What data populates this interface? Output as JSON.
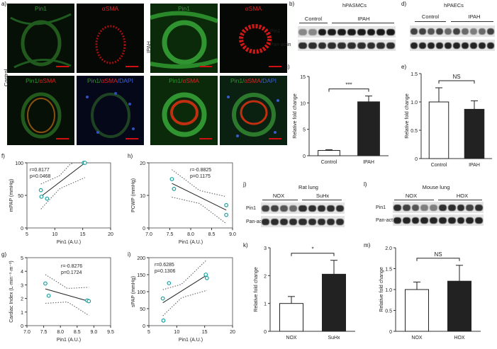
{
  "panel_letters": {
    "a": "a)",
    "b": "b)",
    "c": "c)",
    "d": "d)",
    "e": "e)",
    "f": "f)",
    "g": "g)",
    "h": "h)",
    "i": "i)",
    "j": "j)",
    "k": "k)",
    "l": "l)",
    "m": "m)"
  },
  "panel_a": {
    "row_label_control": "Control",
    "row_label_ipah": "IPAH",
    "label_pin1": "Pin1",
    "label_asma": "αSMA",
    "label_pin1_part": "Pin1/",
    "label_asma_part": "αSMA",
    "label_slash": "/",
    "label_dapi": "DAPI"
  },
  "panel_b": {
    "title": "hPASMCs",
    "group1": "Control",
    "group2": "IPAH",
    "row1": "Pin1",
    "row2": "Pan-actin"
  },
  "panel_d": {
    "title": "hPAECs",
    "group1": "Control",
    "group2": "IPAH"
  },
  "panel_j": {
    "title": "Rat lung",
    "group1": "NOX",
    "group2": "SuHx",
    "row1": "Pin1",
    "row2": "Pan-actin"
  },
  "panel_l": {
    "title": "Mouse lung",
    "group1": "NOX",
    "group2": "HOX",
    "row1": "Pin1",
    "row2": "Pan-actin"
  },
  "chart_data": [
    {
      "id": "c",
      "type": "bar",
      "categories": [
        "Control",
        "IPAH"
      ],
      "values": [
        1.0,
        10.2
      ],
      "errors": [
        0.15,
        1.1
      ],
      "ylabel": "Relative fold change",
      "ylim": [
        0,
        15
      ],
      "yticks": [
        0,
        5,
        10,
        15
      ],
      "annotation": "***",
      "colors": [
        "#ffffff",
        "#222222"
      ]
    },
    {
      "id": "e",
      "type": "bar",
      "categories": [
        "Control",
        "IPAH"
      ],
      "values": [
        1.0,
        0.87
      ],
      "errors": [
        0.25,
        0.15
      ],
      "ylabel": "Relative fold change",
      "ylim": [
        0,
        1.5
      ],
      "yticks": [
        "0",
        "0.5",
        "1.0",
        "1.5"
      ],
      "annotation": "NS",
      "colors": [
        "#ffffff",
        "#222222"
      ]
    },
    {
      "id": "k",
      "type": "bar",
      "categories": [
        "NOX",
        "SuHx"
      ],
      "values": [
        1.0,
        2.05
      ],
      "errors": [
        0.25,
        0.5
      ],
      "ylabel": "Relative fold change",
      "ylim": [
        0,
        3
      ],
      "yticks": [
        "0",
        "1",
        "2",
        "3"
      ],
      "annotation": "*",
      "colors": [
        "#ffffff",
        "#222222"
      ]
    },
    {
      "id": "m",
      "type": "bar",
      "categories": [
        "NOX",
        "HOX"
      ],
      "values": [
        1.0,
        1.2
      ],
      "errors": [
        0.18,
        0.38
      ],
      "ylabel": "Relative fold change",
      "ylim": [
        0,
        2.0
      ],
      "yticks": [
        "0",
        "0.5",
        "1.0",
        "1.5",
        "2.0"
      ],
      "annotation": "NS",
      "colors": [
        "#ffffff",
        "#222222"
      ]
    },
    {
      "id": "f",
      "type": "scatter",
      "xlabel": "Pin1 (A.U.)",
      "ylabel": "mPAP (mmHg)",
      "xlim": [
        5,
        20
      ],
      "ylim": [
        0,
        100
      ],
      "xticks": [
        "5",
        "10",
        "15",
        "20"
      ],
      "yticks": [
        "0",
        "50",
        "100"
      ],
      "x": [
        7.6,
        8.6,
        7.5,
        15.2,
        15.4
      ],
      "y": [
        48,
        45,
        58,
        100,
        100
      ],
      "stats": [
        "r=0.8177",
        "p=0.0468"
      ]
    },
    {
      "id": "h",
      "type": "scatter",
      "xlabel": "Pin1 (A.U.)",
      "ylabel": "PCWP (mmHg)",
      "xlim": [
        7.0,
        9.0
      ],
      "ylim": [
        0,
        20
      ],
      "xticks": [
        "7.0",
        "7.5",
        "8.0",
        "8.5",
        "9.0"
      ],
      "yticks": [
        "0",
        "10",
        "20"
      ],
      "x": [
        7.55,
        7.6,
        8.85,
        8.85
      ],
      "y": [
        15,
        12,
        7,
        4
      ],
      "stats": [
        "r=-0.8825",
        "p=0.1175"
      ]
    },
    {
      "id": "g",
      "type": "scatter",
      "xlabel": "Pin1 (A.U.)",
      "ylabel": "Cardiac Index (L·min⁻¹·m⁻²)",
      "xlim": [
        7.0,
        9.5
      ],
      "ylim": [
        0,
        5
      ],
      "xticks": [
        "7.0",
        "7.5",
        "8.0",
        "8.5",
        "9.0",
        "9.5"
      ],
      "yticks": [
        "0",
        "1",
        "2",
        "3",
        "4",
        "5"
      ],
      "x": [
        7.55,
        7.65,
        8.8,
        8.85
      ],
      "y": [
        3.1,
        2.2,
        1.85,
        1.8
      ],
      "stats": [
        "r=-0.8276",
        "p=0.1724"
      ]
    },
    {
      "id": "i",
      "type": "scatter",
      "xlabel": "Pin1 (A.U.)",
      "ylabel": "sPAP (mmHg)",
      "xlim": [
        5,
        20
      ],
      "ylim": [
        0,
        200
      ],
      "xticks": [
        "5",
        "10",
        "15",
        "20"
      ],
      "yticks": [
        "0",
        "50",
        "100",
        "150",
        "200"
      ],
      "x": [
        7.5,
        7.6,
        8.6,
        15.2,
        15.4
      ],
      "y": [
        80,
        15,
        125,
        150,
        140
      ],
      "stats": [
        "r=0.6285",
        "p=0.1306"
      ]
    }
  ]
}
